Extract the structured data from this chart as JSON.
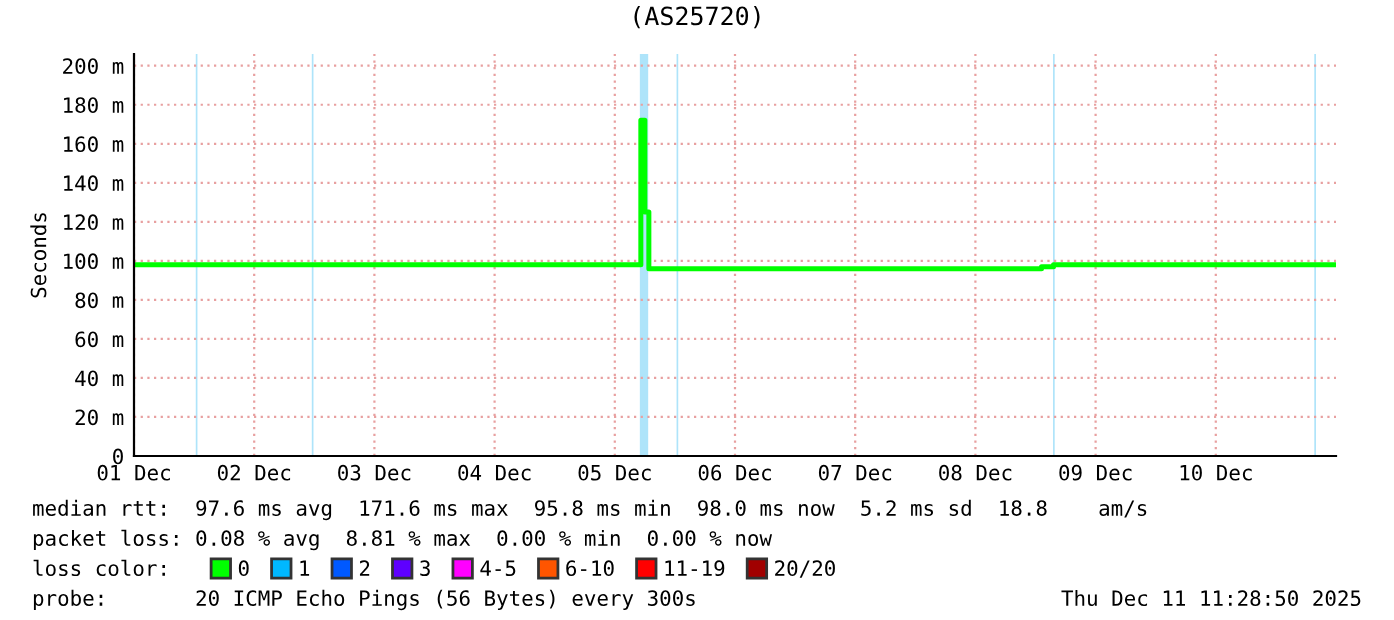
{
  "chart_data": {
    "type": "step",
    "title": "(AS25720)",
    "ylabel": "Seconds",
    "x": [
      "2025-12-01T00:00",
      "2025-12-05T05:12",
      "2025-12-05T06:00",
      "2025-12-05T06:48",
      "2025-12-08T13:12",
      "2025-12-08T15:36",
      "2025-12-10T23:30"
    ],
    "series": [
      {
        "name": "0",
        "color": "#00ff00",
        "values": [
          98,
          172,
          125,
          96,
          97,
          98,
          98
        ]
      },
      {
        "name": "1",
        "color": "#00b8ff",
        "values": [
          null,
          null,
          null,
          null,
          null,
          null,
          null
        ]
      },
      {
        "name": "2",
        "color": "#0059ff",
        "values": [
          null,
          null,
          null,
          null,
          null,
          null,
          null
        ]
      },
      {
        "name": "3",
        "color": "#5e00ff",
        "values": [
          null,
          null,
          null,
          null,
          null,
          null,
          null
        ]
      },
      {
        "name": "4-5",
        "color": "#ff00ff",
        "values": [
          null,
          null,
          null,
          null,
          null,
          null,
          null
        ]
      },
      {
        "name": "6-10",
        "color": "#ff5500",
        "values": [
          null,
          null,
          null,
          null,
          null,
          null,
          null
        ]
      },
      {
        "name": "11-19",
        "color": "#ff0000",
        "values": [
          null,
          null,
          null,
          null,
          null,
          null,
          null
        ]
      },
      {
        "name": "20/20",
        "color": "#a10000",
        "values": [
          null,
          null,
          null,
          null,
          null,
          null,
          null
        ]
      }
    ],
    "legend_title": "loss color:",
    "legend": "bottom",
    "bands": [
      {
        "axis": "x",
        "from": "2025-12-01T12:20",
        "to": "2025-12-01T12:40",
        "color": "#aee4fa"
      },
      {
        "axis": "x",
        "from": "2025-12-02T11:30",
        "to": "2025-12-02T11:50",
        "color": "#aee4fa"
      },
      {
        "axis": "x",
        "from": "2025-12-05T05:00",
        "to": "2025-12-05T06:40",
        "color": "#aee4fa"
      },
      {
        "axis": "x",
        "from": "2025-12-05T12:20",
        "to": "2025-12-05T12:40",
        "color": "#aee4fa"
      },
      {
        "axis": "x",
        "from": "2025-12-08T15:30",
        "to": "2025-12-08T15:50",
        "color": "#aee4fa"
      },
      {
        "axis": "x",
        "from": "2025-12-10T19:40",
        "to": "2025-12-10T20:00",
        "color": "#aee4fa"
      }
    ],
    "xlim": [
      "2025-12-01",
      "2025-12-11"
    ],
    "xticks": [
      {
        "value": "2025-12-01",
        "label": "01 Dec"
      },
      {
        "value": "2025-12-02",
        "label": "02 Dec"
      },
      {
        "value": "2025-12-03",
        "label": "03 Dec"
      },
      {
        "value": "2025-12-04",
        "label": "04 Dec"
      },
      {
        "value": "2025-12-05",
        "label": "05 Dec"
      },
      {
        "value": "2025-12-06",
        "label": "06 Dec"
      },
      {
        "value": "2025-12-07",
        "label": "07 Dec"
      },
      {
        "value": "2025-12-08",
        "label": "08 Dec"
      },
      {
        "value": "2025-12-09",
        "label": "09 Dec"
      },
      {
        "value": "2025-12-10",
        "label": "10 Dec"
      }
    ],
    "ylim": [
      0,
      206
    ],
    "yticks": [
      0,
      {
        "value": 20,
        "label": "20 m"
      },
      {
        "value": 40,
        "label": "40 m"
      },
      {
        "value": 60,
        "label": "60 m"
      },
      {
        "value": 80,
        "label": "80 m"
      },
      {
        "value": 100,
        "label": "100 m"
      },
      {
        "value": 120,
        "label": "120 m"
      },
      {
        "value": 140,
        "label": "140 m"
      },
      {
        "value": 160,
        "label": "160 m"
      },
      {
        "value": 180,
        "label": "180 m"
      },
      {
        "value": 200,
        "label": "200 m"
      }
    ],
    "grid": true,
    "annotations": [
      "median rtt:  97.6 ms avg  171.6 ms max  95.8 ms min  98.0 ms now  5.2 ms sd  18.8    am/s",
      "packet loss: 0.08 % avg  8.81 % max  0.00 % min  0.00 % now",
      "probe:       20 ICMP Echo Pings (56 Bytes) every 300s",
      "Thu Dec 11 11:28:50 2025"
    ]
  }
}
